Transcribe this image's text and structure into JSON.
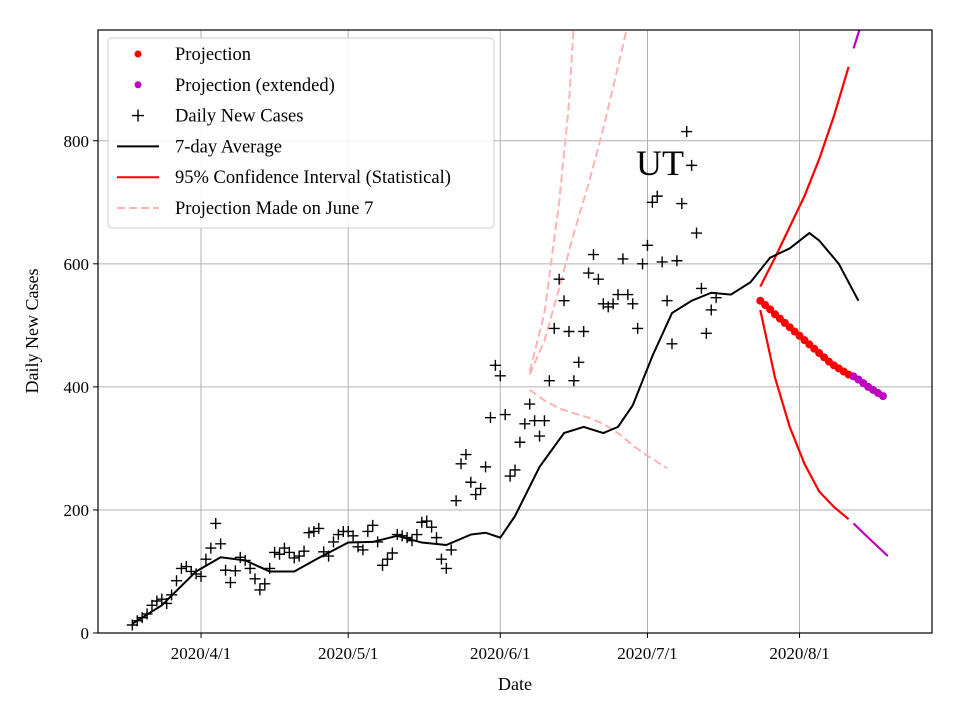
{
  "chart_data": {
    "type": "scatter",
    "title": "UT",
    "xlabel": "Date",
    "ylabel": "Daily New Cases",
    "xlim": [
      "2020-03-11",
      "2020-08-28"
    ],
    "ylim": [
      0,
      980
    ],
    "grid": true,
    "legend_position": "upper left",
    "x_ticks": [
      {
        "date": "2020-04-01",
        "label": "2020/4/1"
      },
      {
        "date": "2020-05-01",
        "label": "2020/5/1"
      },
      {
        "date": "2020-06-01",
        "label": "2020/6/1"
      },
      {
        "date": "2020-07-01",
        "label": "2020/7/1"
      },
      {
        "date": "2020-08-01",
        "label": "2020/8/1"
      }
    ],
    "y_ticks": [
      {
        "value": 0,
        "label": "0"
      },
      {
        "value": 200,
        "label": "200"
      },
      {
        "value": 400,
        "label": "400"
      },
      {
        "value": 600,
        "label": "600"
      },
      {
        "value": 800,
        "label": "800"
      }
    ],
    "colors": {
      "projection": "#ff0000",
      "projection_extended": "#bf00bf",
      "daily": "#000000",
      "avg": "#000000",
      "ci": "#ff0000",
      "june7": "#ffb3b3",
      "grid": "#b0b0b0"
    },
    "legend": [
      {
        "key": "projection",
        "label": "Projection"
      },
      {
        "key": "projection_extended",
        "label": "Projection (extended)"
      },
      {
        "key": "daily",
        "label": "Daily New Cases"
      },
      {
        "key": "avg",
        "label": "7-day Average"
      },
      {
        "key": "ci",
        "label": "95% Confidence Interval (Statistical)"
      },
      {
        "key": "june7",
        "label": "Projection Made on June 7"
      }
    ],
    "series": [
      {
        "name": "Daily New Cases",
        "start_date": "2020-03-18",
        "values": [
          13,
          20,
          25,
          31,
          45,
          52,
          55,
          48,
          62,
          85,
          105,
          108,
          100,
          96,
          92,
          120,
          138,
          178,
          145,
          102,
          82,
          101,
          123,
          118,
          105,
          88,
          70,
          80,
          105,
          131,
          128,
          138,
          131,
          122,
          125,
          133,
          163,
          165,
          170,
          132,
          125,
          148,
          160,
          165,
          165,
          158,
          140,
          135,
          165,
          175,
          148,
          110,
          120,
          130,
          160,
          158,
          155,
          150,
          160,
          180,
          182,
          172,
          155,
          120,
          105,
          135,
          215,
          275,
          290,
          245,
          225,
          235,
          270,
          350,
          435,
          418,
          355,
          255,
          265,
          310,
          340,
          372,
          345,
          320,
          345,
          410,
          495,
          575,
          540,
          490,
          410,
          440,
          490,
          585,
          615,
          575,
          535,
          530,
          535,
          550,
          608,
          550,
          535,
          495,
          600,
          630,
          700,
          710,
          603,
          540,
          470,
          605,
          698,
          815,
          760,
          650,
          560,
          487,
          525,
          545
        ]
      },
      {
        "name": "7-day Average",
        "points": [
          [
            "2020-03-18",
            15
          ],
          [
            "2020-03-24",
            45
          ],
          [
            "2020-03-31",
            100
          ],
          [
            "2020-04-05",
            123
          ],
          [
            "2020-04-10",
            118
          ],
          [
            "2020-04-15",
            100
          ],
          [
            "2020-04-20",
            100
          ],
          [
            "2020-04-25",
            122
          ],
          [
            "2020-05-01",
            147
          ],
          [
            "2020-05-06",
            148
          ],
          [
            "2020-05-11",
            158
          ],
          [
            "2020-05-16",
            147
          ],
          [
            "2020-05-21",
            143
          ],
          [
            "2020-05-26",
            160
          ],
          [
            "2020-05-29",
            163
          ],
          [
            "2020-06-01",
            155
          ],
          [
            "2020-06-04",
            190
          ],
          [
            "2020-06-09",
            270
          ],
          [
            "2020-06-14",
            325
          ],
          [
            "2020-06-18",
            335
          ],
          [
            "2020-06-22",
            325
          ],
          [
            "2020-06-25",
            335
          ],
          [
            "2020-06-28",
            370
          ],
          [
            "2020-07-02",
            450
          ],
          [
            "2020-07-06",
            520
          ],
          [
            "2020-07-10",
            540
          ],
          [
            "2020-07-14",
            553
          ],
          [
            "2020-07-18",
            550
          ],
          [
            "2020-07-22",
            570
          ],
          [
            "2020-07-26",
            610
          ],
          [
            "2020-07-30",
            625
          ],
          [
            "2020-08-03",
            650
          ],
          [
            "2020-08-05",
            638
          ],
          [
            "2020-08-09",
            600
          ],
          [
            "2020-08-13",
            540
          ]
        ]
      },
      {
        "name": "Projection",
        "start_date": "2020-07-24",
        "step_days": 1,
        "values": [
          540,
          533,
          526,
          518,
          511,
          504,
          497,
          490,
          483,
          476,
          469,
          462,
          455,
          448,
          441,
          435,
          430,
          425,
          420
        ]
      },
      {
        "name": "Projection (extended)",
        "start_date": "2020-08-12",
        "step_days": 1,
        "values": [
          417,
          412,
          406,
          400,
          395,
          390,
          385
        ]
      },
      {
        "name": "95% Confidence Interval (Statistical) upper",
        "points": [
          [
            "2020-07-24",
            563
          ],
          [
            "2020-07-27",
            610
          ],
          [
            "2020-07-30",
            660
          ],
          [
            "2020-08-02",
            710
          ],
          [
            "2020-08-05",
            770
          ],
          [
            "2020-08-08",
            840
          ],
          [
            "2020-08-11",
            920
          ]
        ]
      },
      {
        "name": "95% Confidence Interval (Statistical) lower",
        "points": [
          [
            "2020-07-24",
            525
          ],
          [
            "2020-07-27",
            415
          ],
          [
            "2020-07-30",
            335
          ],
          [
            "2020-08-02",
            275
          ],
          [
            "2020-08-05",
            230
          ],
          [
            "2020-08-08",
            205
          ],
          [
            "2020-08-11",
            185
          ]
        ]
      },
      {
        "name": "Confidence interval extended upper",
        "points": [
          [
            "2020-08-12",
            950
          ],
          [
            "2020-08-14",
            1000
          ]
        ]
      },
      {
        "name": "Confidence interval extended lower",
        "points": [
          [
            "2020-08-12",
            178
          ],
          [
            "2020-08-15",
            155
          ],
          [
            "2020-08-19",
            125
          ]
        ]
      },
      {
        "name": "Projection Made on June 7 (upper)",
        "points": [
          [
            "2020-06-07",
            425
          ],
          [
            "2020-06-10",
            520
          ],
          [
            "2020-06-13",
            700
          ],
          [
            "2020-06-15",
            860
          ],
          [
            "2020-06-16",
            990
          ]
        ]
      },
      {
        "name": "Projection Made on June 7 (middle)",
        "points": [
          [
            "2020-06-07",
            420
          ],
          [
            "2020-06-10",
            475
          ],
          [
            "2020-06-13",
            560
          ],
          [
            "2020-06-16",
            650
          ],
          [
            "2020-06-19",
            730
          ],
          [
            "2020-06-22",
            820
          ],
          [
            "2020-06-25",
            920
          ],
          [
            "2020-06-27",
            990
          ]
        ]
      },
      {
        "name": "Projection Made on June 7 (lower)",
        "points": [
          [
            "2020-06-07",
            395
          ],
          [
            "2020-06-10",
            378
          ],
          [
            "2020-06-13",
            365
          ],
          [
            "2020-06-16",
            357
          ],
          [
            "2020-06-19",
            350
          ],
          [
            "2020-06-22",
            340
          ],
          [
            "2020-06-25",
            325
          ],
          [
            "2020-06-28",
            305
          ],
          [
            "2020-07-01",
            288
          ],
          [
            "2020-07-05",
            268
          ]
        ]
      }
    ]
  }
}
